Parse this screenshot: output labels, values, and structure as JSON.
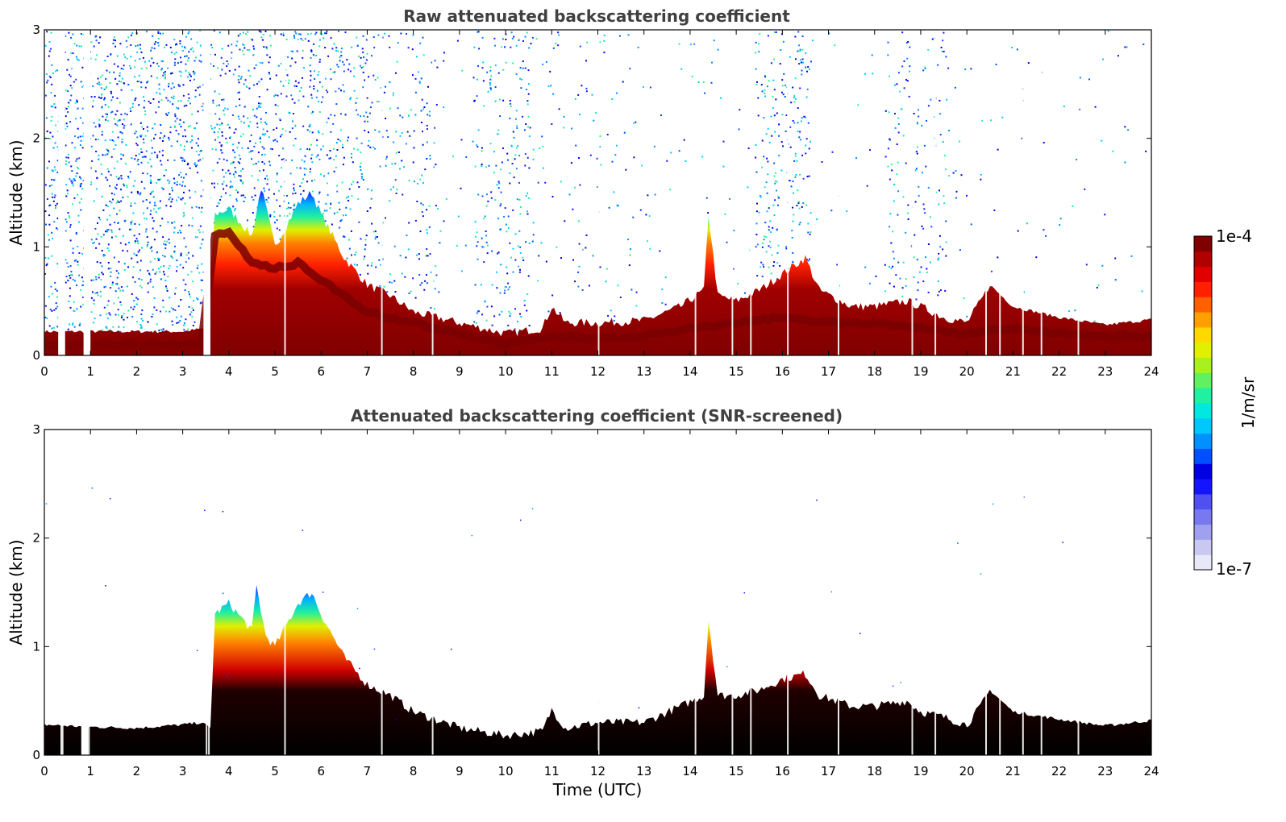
{
  "chart_data": [
    {
      "type": "heatmap",
      "title": "Raw attenuated backscattering coefficient",
      "xlabel": "",
      "ylabel": "Altitude (km)",
      "xlim": [
        0,
        24
      ],
      "ylim": [
        0,
        3
      ],
      "x_ticks": [
        "0",
        "1",
        "2",
        "3",
        "4",
        "5",
        "6",
        "7",
        "8",
        "9",
        "10",
        "11",
        "12",
        "13",
        "14",
        "15",
        "16",
        "17",
        "18",
        "19",
        "20",
        "21",
        "22",
        "23",
        "24"
      ],
      "y_ticks": [
        "0",
        "1",
        "2",
        "3"
      ],
      "layer_top_km": [
        [
          0,
          0.22
        ],
        [
          1,
          0.22
        ],
        [
          2,
          0.22
        ],
        [
          3,
          0.22
        ],
        [
          3.5,
          0.25
        ],
        [
          3.7,
          1.3
        ],
        [
          4,
          1.35
        ],
        [
          4.5,
          1.1
        ],
        [
          4.7,
          1.55
        ],
        [
          5,
          1.0
        ],
        [
          5.5,
          1.4
        ],
        [
          5.8,
          1.5
        ],
        [
          6,
          1.3
        ],
        [
          6.5,
          0.9
        ],
        [
          7,
          0.65
        ],
        [
          7.5,
          0.55
        ],
        [
          8,
          0.4
        ],
        [
          9,
          0.3
        ],
        [
          10,
          0.2
        ],
        [
          10.8,
          0.25
        ],
        [
          11,
          0.45
        ],
        [
          11.3,
          0.3
        ],
        [
          12,
          0.3
        ],
        [
          13,
          0.32
        ],
        [
          13.8,
          0.45
        ],
        [
          14.3,
          0.6
        ],
        [
          14.4,
          1.3
        ],
        [
          14.6,
          0.55
        ],
        [
          15,
          0.5
        ],
        [
          15.5,
          0.6
        ],
        [
          16,
          0.75
        ],
        [
          16.5,
          0.9
        ],
        [
          16.8,
          0.6
        ],
        [
          17.5,
          0.45
        ],
        [
          18,
          0.45
        ],
        [
          18.7,
          0.5
        ],
        [
          19,
          0.45
        ],
        [
          19.5,
          0.35
        ],
        [
          20,
          0.3
        ],
        [
          20.3,
          0.5
        ],
        [
          20.5,
          0.65
        ],
        [
          21,
          0.45
        ],
        [
          22,
          0.35
        ],
        [
          23,
          0.28
        ],
        [
          24,
          0.33
        ]
      ],
      "peak_core_km": [
        [
          0,
          0.1
        ],
        [
          3.4,
          0.1
        ],
        [
          3.7,
          1.1
        ],
        [
          4,
          1.15
        ],
        [
          4.5,
          0.85
        ],
        [
          5,
          0.8
        ],
        [
          5.5,
          0.85
        ],
        [
          6,
          0.7
        ],
        [
          6.5,
          0.55
        ],
        [
          7,
          0.4
        ],
        [
          8,
          0.3
        ],
        [
          9,
          0.2
        ],
        [
          10,
          0.1
        ],
        [
          11,
          0.18
        ],
        [
          12,
          0.15
        ],
        [
          13,
          0.18
        ],
        [
          14,
          0.25
        ],
        [
          15,
          0.3
        ],
        [
          16,
          0.35
        ],
        [
          17,
          0.3
        ],
        [
          18,
          0.3
        ],
        [
          19,
          0.25
        ],
        [
          20,
          0.2
        ],
        [
          21,
          0.25
        ],
        [
          22,
          0.2
        ],
        [
          23,
          0.18
        ],
        [
          24,
          0.18
        ]
      ]
    },
    {
      "type": "heatmap",
      "title": "Attenuated backscattering coefficient (SNR-screened)",
      "xlabel": "Time (UTC)",
      "ylabel": "Altitude (km)",
      "xlim": [
        0,
        24
      ],
      "ylim": [
        0,
        3
      ],
      "x_ticks": [
        "0",
        "1",
        "2",
        "3",
        "4",
        "5",
        "6",
        "7",
        "8",
        "9",
        "10",
        "11",
        "12",
        "13",
        "14",
        "15",
        "16",
        "17",
        "18",
        "19",
        "20",
        "21",
        "22",
        "23",
        "24"
      ],
      "y_ticks": [
        "0",
        "1",
        "2",
        "3"
      ],
      "layer_top_km": [
        [
          0,
          0.28
        ],
        [
          1,
          0.26
        ],
        [
          2,
          0.25
        ],
        [
          3,
          0.28
        ],
        [
          3.4,
          0.3
        ],
        [
          3.6,
          0.25
        ],
        [
          3.7,
          1.3
        ],
        [
          4,
          1.4
        ],
        [
          4.5,
          1.15
        ],
        [
          4.6,
          1.55
        ],
        [
          4.8,
          1.1
        ],
        [
          5,
          1.0
        ],
        [
          5.5,
          1.4
        ],
        [
          5.8,
          1.5
        ],
        [
          6,
          1.3
        ],
        [
          6.5,
          0.9
        ],
        [
          7,
          0.65
        ],
        [
          7.5,
          0.55
        ],
        [
          8,
          0.4
        ],
        [
          9,
          0.25
        ],
        [
          10,
          0.18
        ],
        [
          10.8,
          0.22
        ],
        [
          11,
          0.42
        ],
        [
          11.3,
          0.25
        ],
        [
          12,
          0.3
        ],
        [
          13,
          0.3
        ],
        [
          13.8,
          0.45
        ],
        [
          14.3,
          0.55
        ],
        [
          14.4,
          1.25
        ],
        [
          14.6,
          0.55
        ],
        [
          15,
          0.55
        ],
        [
          15.5,
          0.6
        ],
        [
          16,
          0.7
        ],
        [
          16.5,
          0.75
        ],
        [
          16.8,
          0.55
        ],
        [
          17.5,
          0.45
        ],
        [
          18,
          0.45
        ],
        [
          18.7,
          0.5
        ],
        [
          19,
          0.4
        ],
        [
          19.5,
          0.35
        ],
        [
          20,
          0.28
        ],
        [
          20.3,
          0.45
        ],
        [
          20.5,
          0.6
        ],
        [
          21,
          0.4
        ],
        [
          22,
          0.33
        ],
        [
          23,
          0.27
        ],
        [
          24,
          0.32
        ]
      ]
    }
  ],
  "colorbar": {
    "max_label": "1e-4",
    "min_label": "1e-7",
    "unit_label": "1/m/sr",
    "colors": [
      "#e8e8f8",
      "#c8c8f0",
      "#a0a0f0",
      "#7878f0",
      "#5050f0",
      "#1414ff",
      "#0000e0",
      "#0050ff",
      "#0090ff",
      "#00c8ff",
      "#00e8e0",
      "#20f0a0",
      "#60f060",
      "#a8f020",
      "#e0f000",
      "#ffd800",
      "#ffa000",
      "#ff6000",
      "#ff2000",
      "#e00000",
      "#b00000",
      "#800000"
    ]
  }
}
